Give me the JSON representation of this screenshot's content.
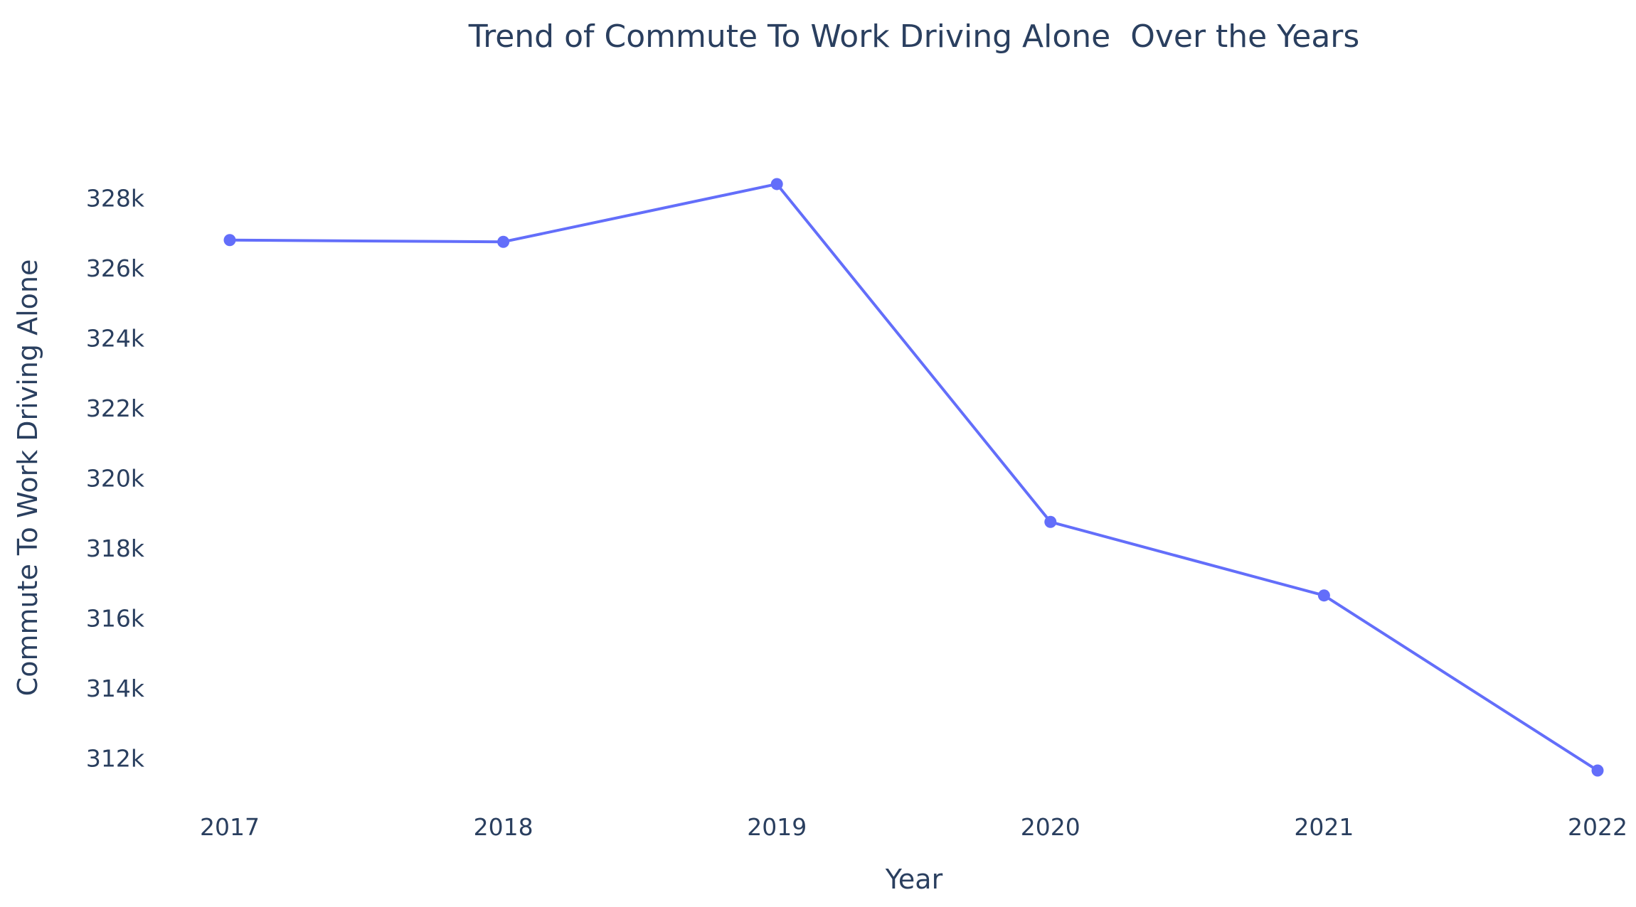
{
  "chart_data": {
    "type": "line",
    "title": "Trend of Commute To Work Driving Alone  Over the Years",
    "xlabel": "Year",
    "ylabel": "Commute To Work Driving Alone",
    "x": [
      "2017",
      "2018",
      "2019",
      "2020",
      "2021",
      "2022"
    ],
    "series": [
      {
        "values": [
          326800,
          326750,
          328400,
          318750,
          316650,
          311650
        ],
        "color": "#636efa"
      }
    ],
    "yticks": [
      312000,
      314000,
      316000,
      318000,
      320000,
      322000,
      324000,
      326000,
      328000
    ],
    "ytick_labels": [
      "312k",
      "314k",
      "316k",
      "318k",
      "320k",
      "322k",
      "324k",
      "326k",
      "328k"
    ],
    "ylim": [
      311000,
      329800
    ],
    "grid": false,
    "legend": "none"
  }
}
